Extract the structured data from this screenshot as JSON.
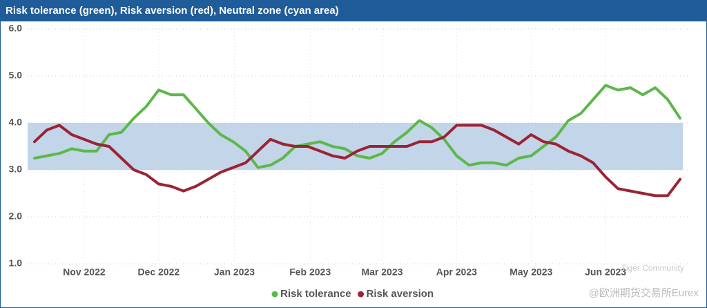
{
  "chart_data": {
    "type": "line",
    "title": "Risk tolerance (green), Risk aversion (red), Neutral zone (cyan area)",
    "x": [
      0,
      1,
      2,
      3,
      4,
      5,
      6,
      7,
      8,
      9,
      10,
      11,
      12,
      13,
      14,
      15,
      16,
      17,
      18,
      19,
      20,
      21,
      22,
      23,
      24,
      25,
      26,
      27,
      28,
      29,
      30,
      31,
      32,
      33,
      34,
      35,
      36,
      37,
      38,
      39,
      40,
      41,
      42,
      43,
      44,
      45,
      46,
      47,
      48,
      49,
      50,
      51,
      52
    ],
    "xlim": [
      0,
      52
    ],
    "xticks": [
      {
        "value": 4,
        "label": "Nov 2022"
      },
      {
        "value": 10,
        "label": "Dec 2022"
      },
      {
        "value": 16.1,
        "label": "Jan 2023"
      },
      {
        "value": 22.2,
        "label": "Feb 2023"
      },
      {
        "value": 28,
        "label": "Mar 2023"
      },
      {
        "value": 34,
        "label": "Apr 2023"
      },
      {
        "value": 40,
        "label": "May 2023"
      },
      {
        "value": 46,
        "label": "Jun 2023"
      }
    ],
    "ylim": [
      1,
      6
    ],
    "yticks": [
      {
        "value": 1,
        "label": "1.0"
      },
      {
        "value": 2,
        "label": "2.0"
      },
      {
        "value": 3,
        "label": "3.0"
      },
      {
        "value": 4,
        "label": "4.0"
      },
      {
        "value": 5,
        "label": "5.0"
      },
      {
        "value": 6,
        "label": "6.0"
      }
    ],
    "grid": true,
    "neutral_band": [
      3,
      4
    ],
    "band_color": "#c3d5e8",
    "series": [
      {
        "name": "Risk tolerance",
        "color": "#5cb84a",
        "values": [
          3.25,
          3.3,
          3.35,
          3.45,
          3.4,
          3.4,
          3.75,
          3.8,
          4.1,
          4.35,
          4.7,
          4.6,
          4.6,
          4.3,
          4.0,
          3.75,
          3.6,
          3.4,
          3.05,
          3.1,
          3.25,
          3.5,
          3.55,
          3.6,
          3.5,
          3.45,
          3.3,
          3.25,
          3.35,
          3.6,
          3.8,
          4.05,
          3.9,
          3.65,
          3.3,
          3.1,
          3.15,
          3.15,
          3.1,
          3.25,
          3.3,
          3.5,
          3.7,
          4.05,
          4.2,
          4.5,
          4.8,
          4.7,
          4.75,
          4.6,
          4.75,
          4.5,
          4.1
        ]
      },
      {
        "name": "Risk aversion",
        "color": "#9b2335",
        "values": [
          3.6,
          3.85,
          3.95,
          3.75,
          3.65,
          3.55,
          3.5,
          3.25,
          3.0,
          2.9,
          2.7,
          2.65,
          2.55,
          2.65,
          2.8,
          2.95,
          3.05,
          3.15,
          3.4,
          3.65,
          3.55,
          3.5,
          3.5,
          3.4,
          3.3,
          3.25,
          3.4,
          3.5,
          3.5,
          3.5,
          3.5,
          3.6,
          3.6,
          3.7,
          3.95,
          3.95,
          3.95,
          3.85,
          3.7,
          3.55,
          3.75,
          3.6,
          3.55,
          3.4,
          3.3,
          3.15,
          2.85,
          2.6,
          2.55,
          2.5,
          2.45,
          2.45,
          2.8
        ]
      }
    ],
    "annotations": [
      "Tiger Community",
      "@欧洲期货交易所Eurex"
    ]
  }
}
